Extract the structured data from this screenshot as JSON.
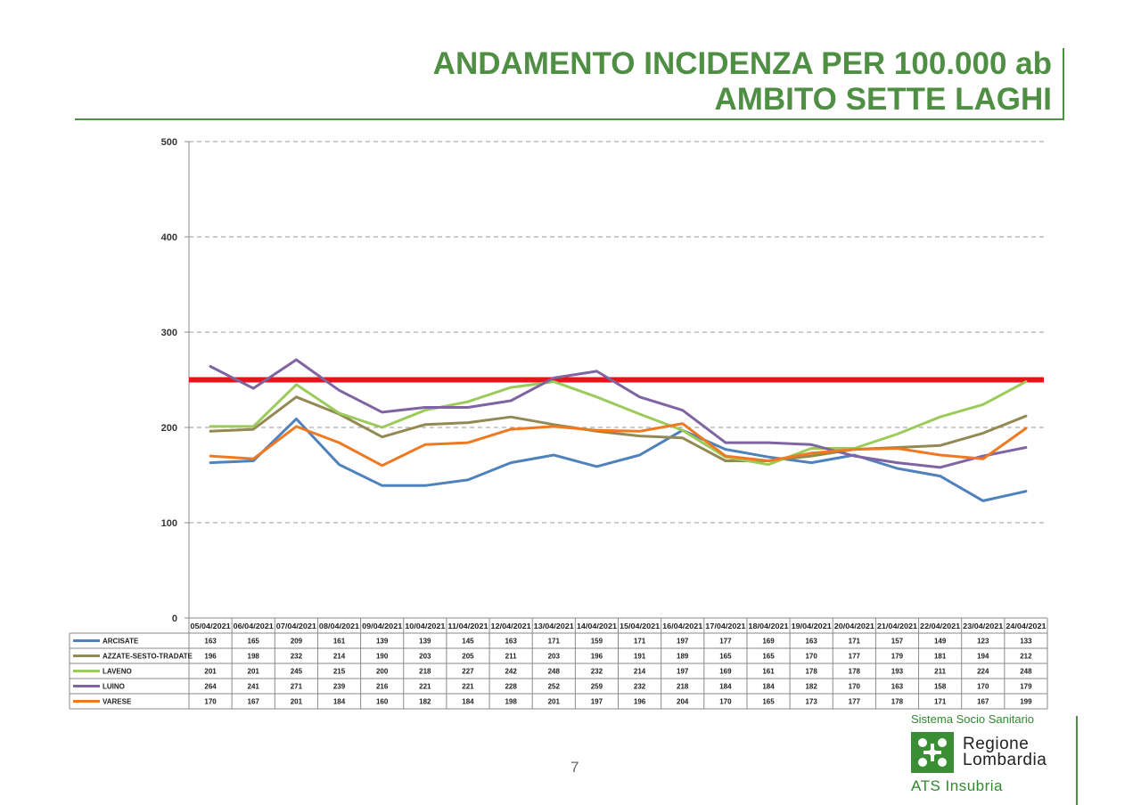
{
  "title": {
    "line1": "ANDAMENTO INCIDENZA PER 100.000 ab",
    "line2": "AMBITO SETTE LAGHI"
  },
  "page_number": "7",
  "logo": {
    "top_text": "Sistema Socio Sanitario",
    "name_line1": "Regione",
    "name_line2": "Lombardia",
    "bottom_text": "ATS Insubria"
  },
  "chart_data": {
    "type": "line",
    "categories": [
      "05/04/2021",
      "06/04/2021",
      "07/04/2021",
      "08/04/2021",
      "09/04/2021",
      "10/04/2021",
      "11/04/2021",
      "12/04/2021",
      "13/04/2021",
      "14/04/2021",
      "15/04/2021",
      "16/04/2021",
      "17/04/2021",
      "18/04/2021",
      "19/04/2021",
      "20/04/2021",
      "21/04/2021",
      "22/04/2021",
      "23/04/2021",
      "24/04/2021"
    ],
    "ylim": [
      0,
      500
    ],
    "yticks": [
      0,
      100,
      200,
      300,
      400,
      500
    ],
    "grid": true,
    "threshold": {
      "value": 250,
      "color": "#e8141b"
    },
    "series": [
      {
        "name": "ARCISATE",
        "color": "#4f81bd",
        "values": [
          163,
          165,
          209,
          161,
          139,
          139,
          145,
          163,
          171,
          159,
          171,
          197,
          177,
          169,
          163,
          171,
          157,
          149,
          123,
          133
        ]
      },
      {
        "name": "AZZATE-SESTO-TRADATE",
        "color": "#938953",
        "values": [
          196,
          198,
          232,
          214,
          190,
          203,
          205,
          211,
          203,
          196,
          191,
          189,
          165,
          165,
          170,
          177,
          179,
          181,
          194,
          212
        ]
      },
      {
        "name": "LAVENO",
        "color": "#9bcb59",
        "values": [
          201,
          201,
          245,
          215,
          200,
          218,
          227,
          242,
          248,
          232,
          214,
          197,
          169,
          161,
          178,
          178,
          193,
          211,
          224,
          248
        ]
      },
      {
        "name": "LUINO",
        "color": "#8064a2",
        "values": [
          264,
          241,
          271,
          239,
          216,
          221,
          221,
          228,
          252,
          259,
          232,
          218,
          184,
          184,
          182,
          170,
          163,
          158,
          170,
          179
        ]
      },
      {
        "name": "VARESE",
        "color": "#f07820",
        "values": [
          170,
          167,
          201,
          184,
          160,
          182,
          184,
          198,
          201,
          197,
          196,
          204,
          170,
          165,
          173,
          177,
          178,
          171,
          167,
          199
        ]
      }
    ]
  }
}
